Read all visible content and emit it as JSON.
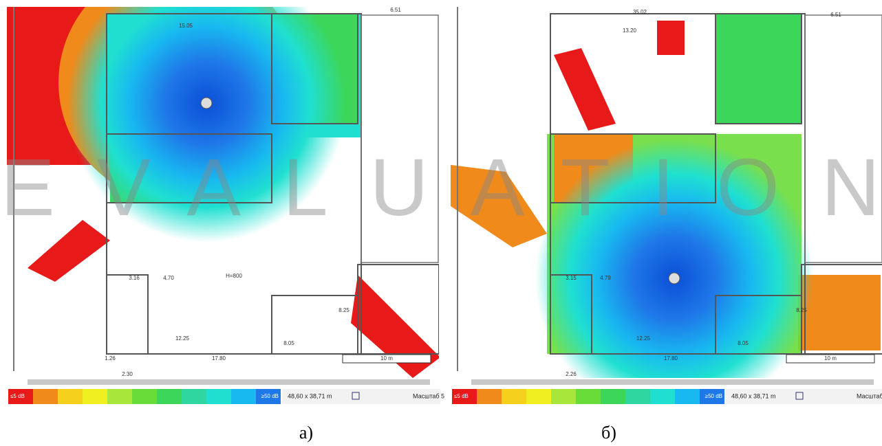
{
  "watermark": "EVALUATION",
  "panels": [
    {
      "caption": "а)",
      "legend": {
        "min_label": "≤5 dB",
        "max_label": "≥50 dB"
      },
      "dimensions": "48,60 x 38,71 m",
      "scale_label": "Масштаб 5",
      "scale_bar": "10 m",
      "labels": [
        "15.05",
        "H=800",
        "12.25",
        "17.80",
        "6.51",
        "3.16",
        "4.70",
        "2.30",
        "1.26",
        "8.25",
        "8.05"
      ]
    },
    {
      "caption": "б)",
      "legend": {
        "min_label": "≤5 dB",
        "max_label": "≥50 dB"
      },
      "dimensions": "48,60 x 38,71 m",
      "scale_label": "Масштаб",
      "scale_bar": "10 m",
      "labels": [
        "35.02",
        "13.20",
        "6.51",
        "12.25",
        "17.80",
        "3.15",
        "4.79",
        "2.26",
        "8.05",
        "8.25"
      ]
    }
  ]
}
